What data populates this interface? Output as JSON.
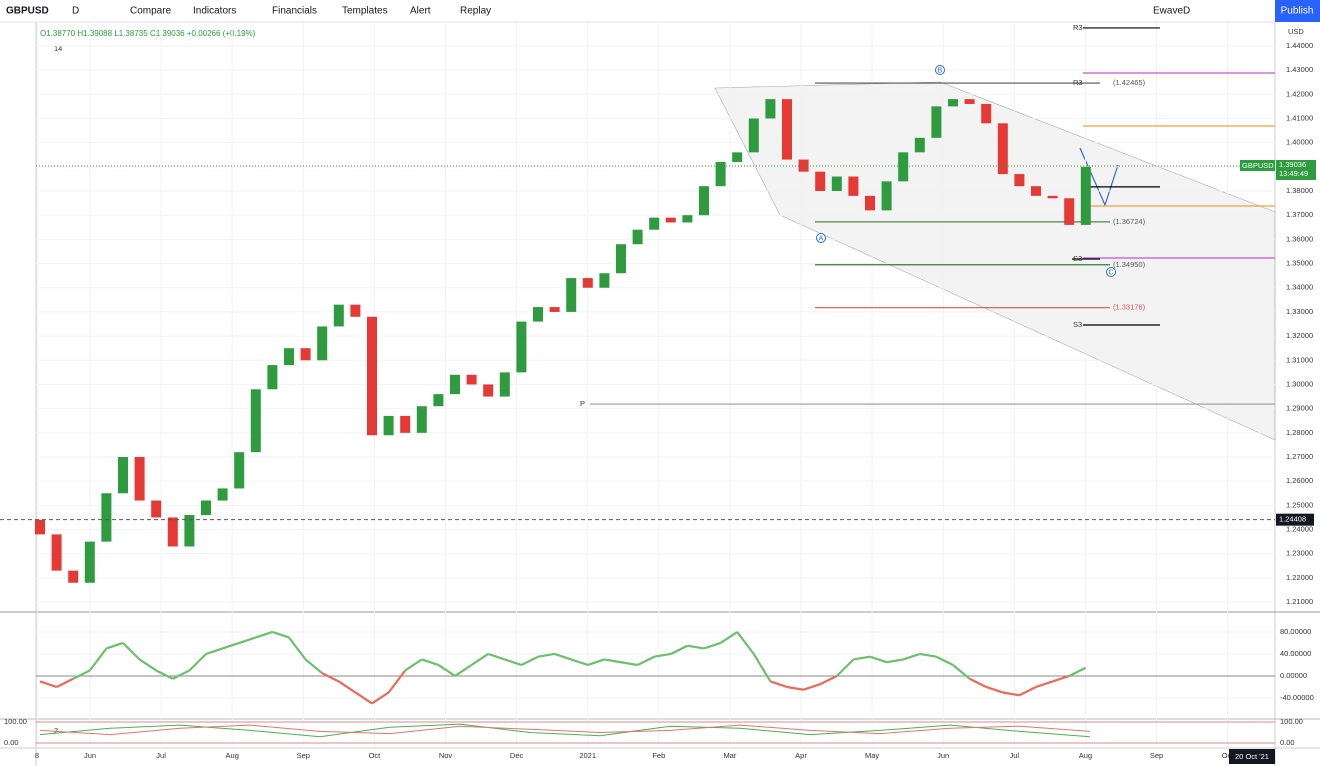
{
  "toolbar": {
    "symbol": "GBPUSD",
    "interval": "D",
    "buttons": [
      "Compare",
      "Indicators",
      "Financials",
      "Templates",
      "Alert",
      "Replay"
    ],
    "layout": "EwaveD",
    "publish": "Publish"
  },
  "legend": {
    "ohlc": [
      "O1.38770",
      "H1.39088",
      "L1.38735",
      "C1.39036",
      "+0.00266 (+0.19%)"
    ],
    "indicator_length": "14",
    "lower_indicator": "2"
  },
  "chart_data": {
    "type": "candlestick",
    "currency": "USD",
    "open": 1.244,
    "closes": [
      1.238,
      1.223,
      1.218,
      1.235,
      1.255,
      1.27,
      1.252,
      1.245,
      1.233,
      1.246,
      1.252,
      1.257,
      1.272,
      1.298,
      1.308,
      1.315,
      1.31,
      1.324,
      1.333,
      1.328,
      1.279,
      1.287,
      1.28,
      1.291,
      1.296,
      1.304,
      1.3,
      1.295,
      1.305,
      1.326,
      1.332,
      1.33,
      1.344,
      1.34,
      1.346,
      1.358,
      1.364,
      1.369,
      1.367,
      1.37,
      1.382,
      1.392,
      1.396,
      1.41,
      1.418,
      1.393,
      1.388,
      1.38,
      1.386,
      1.378,
      1.372,
      1.384,
      1.396,
      1.402,
      1.415,
      1.418,
      1.416,
      1.408,
      1.387,
      1.382,
      1.378,
      1.377,
      1.366,
      1.39
    ],
    "up_color": "#2e9b3e",
    "down_color": "#e53935",
    "ylim": [
      1.2059,
      1.4499
    ],
    "yticks": [
      {
        "value": 1.44,
        "label": "1.44000"
      },
      {
        "value": 1.43,
        "label": "1.43000"
      },
      {
        "value": 1.42,
        "label": "1.42000"
      },
      {
        "value": 1.41,
        "label": "1.41000"
      },
      {
        "value": 1.4,
        "label": "1.40000"
      },
      {
        "value": 1.39,
        "label": "1.39000"
      },
      {
        "value": 1.38,
        "label": "1.38000"
      },
      {
        "value": 1.37,
        "label": "1.37000"
      },
      {
        "value": 1.36,
        "label": "1.36000"
      },
      {
        "value": 1.35,
        "label": "1.35000"
      },
      {
        "value": 1.34,
        "label": "1.34000"
      },
      {
        "value": 1.33,
        "label": "1.33000"
      },
      {
        "value": 1.32,
        "label": "1.32000"
      },
      {
        "value": 1.31,
        "label": "1.31000"
      },
      {
        "value": 1.3,
        "label": "1.30000"
      },
      {
        "value": 1.29,
        "label": "1.29000"
      },
      {
        "value": 1.28,
        "label": "1.28000"
      },
      {
        "value": 1.27,
        "label": "1.27000"
      },
      {
        "value": 1.26,
        "label": "1.26000"
      },
      {
        "value": 1.25,
        "label": "1.25000"
      },
      {
        "value": 1.24,
        "label": "1.24000"
      },
      {
        "value": 1.23,
        "label": "1.23000"
      },
      {
        "value": 1.22,
        "label": "1.22000"
      },
      {
        "value": 1.21,
        "label": "1.21000"
      }
    ],
    "x_labels": [
      "8",
      "Jun",
      "Jul",
      "Aug",
      "Sep",
      "Oct",
      "Nov",
      "Dec",
      "2021",
      "Feb",
      "Mar",
      "Apr",
      "May",
      "Jun",
      "Jul",
      "Aug",
      "Sep",
      "Oct"
    ],
    "date_label": "20 Oct '21",
    "levels": [
      {
        "price": 1.44745,
        "color": "#000000",
        "label": "R3"
      },
      {
        "price": 1.42465,
        "color": "#555555",
        "label": "R3",
        "value_label": "(1.42465)"
      },
      {
        "price": 1.4288,
        "color": "#d050d0"
      },
      {
        "price": 1.4069,
        "color": "#f5a040"
      },
      {
        "price": 1.3817,
        "color": "#000000"
      },
      {
        "price": 1.3738,
        "color": "#f5a040"
      },
      {
        "price": 1.36724,
        "color": "#4a8a4a",
        "value_label": "(1.36724)"
      },
      {
        "price": 1.3523,
        "color": "#d050d0"
      },
      {
        "price": 1.3519,
        "color": "#000000",
        "label": "S3"
      },
      {
        "price": 1.3495,
        "color": "#2e7d32",
        "value_label": "(1.34950)"
      },
      {
        "price": 1.33176,
        "color": "#e05050",
        "value_label": "(1.33176)"
      },
      {
        "price": 1.3246,
        "color": "#000000",
        "label": "S3"
      },
      {
        "price": 1.2919,
        "color": "#999999",
        "label": "P"
      }
    ],
    "waves": [
      "B",
      "A",
      "C"
    ],
    "last": {
      "symbol": "GBPUSD",
      "price": 1.39036,
      "countdown": "13:49:49"
    },
    "crosshair": 1.24408,
    "oscillator": {
      "values": [
        -10,
        -20,
        -5,
        10,
        50,
        60,
        30,
        10,
        -5,
        10,
        40,
        50,
        60,
        70,
        80,
        70,
        30,
        5,
        -10,
        -30,
        -50,
        -30,
        10,
        30,
        20,
        0,
        20,
        40,
        30,
        20,
        35,
        40,
        30,
        20,
        30,
        25,
        20,
        35,
        40,
        55,
        50,
        60,
        80,
        40,
        -10,
        -20,
        -25,
        -15,
        0,
        30,
        35,
        25,
        30,
        40,
        35,
        20,
        -5,
        -20,
        -30,
        -35,
        -20,
        -10,
        0,
        15
      ],
      "ylim": [
        -76.4,
        114.5
      ],
      "yticks": [
        {
          "value": 80,
          "label": "80.00000"
        },
        {
          "value": 40,
          "label": "40.00000"
        },
        {
          "value": 0,
          "label": "0.00000"
        },
        {
          "value": -40,
          "label": "-40.00000"
        }
      ],
      "up_color": "#6cbf6c",
      "down_color": "#e86a5a"
    },
    "lower": {
      "ylim": [
        -33.3,
        109.5
      ],
      "yticks": [
        {
          "value": 100,
          "label": "100.00"
        },
        {
          "value": 0,
          "label": "0.00"
        }
      ],
      "series": [
        {
          "color": "#4caf50",
          "values": [
            40,
            70,
            85,
            60,
            30,
            75,
            90,
            50,
            35,
            80,
            70,
            40,
            60,
            85,
            55,
            30
          ]
        },
        {
          "color": "#e57373",
          "values": [
            60,
            40,
            70,
            85,
            55,
            45,
            80,
            65,
            50,
            60,
            85,
            60,
            45,
            70,
            80,
            55
          ]
        }
      ]
    }
  }
}
